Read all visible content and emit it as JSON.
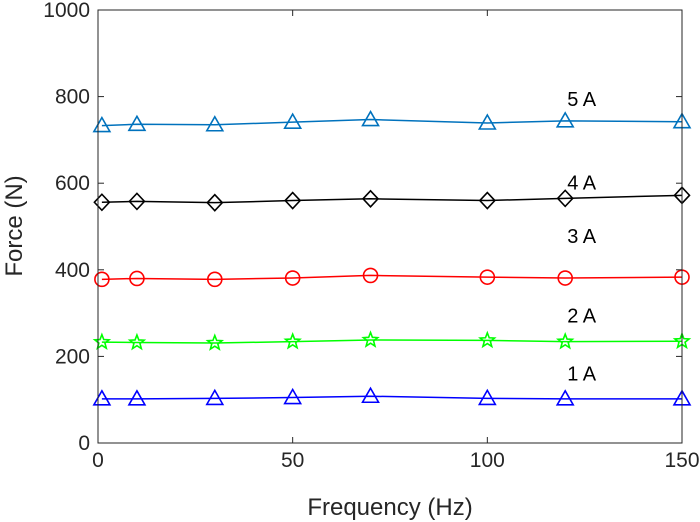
{
  "chart_data": {
    "type": "line",
    "title": "",
    "xlabel": "Frequency (Hz)",
    "ylabel": "Force (N)",
    "xlim": [
      0,
      150
    ],
    "ylim": [
      0,
      1000
    ],
    "xticks": [
      0,
      50,
      100,
      150
    ],
    "yticks": [
      0,
      200,
      400,
      600,
      800,
      1000
    ],
    "grid": false,
    "x": [
      1,
      10,
      30,
      50,
      70,
      100,
      120,
      150
    ],
    "series": [
      {
        "name": "1 A",
        "marker": "triangle",
        "color": "#0000ff",
        "values": [
          102,
          102,
          103,
          105,
          108,
          103,
          102,
          102
        ]
      },
      {
        "name": "2 A",
        "marker": "star",
        "color": "#00ff00",
        "values": [
          233,
          232,
          231,
          234,
          238,
          237,
          234,
          235
        ]
      },
      {
        "name": "3 A",
        "marker": "circle",
        "color": "#ff0000",
        "values": [
          378,
          380,
          378,
          381,
          387,
          383,
          381,
          383
        ]
      },
      {
        "name": "4 A",
        "marker": "diamond",
        "color": "#000000",
        "values": [
          556,
          558,
          555,
          560,
          564,
          560,
          565,
          572
        ]
      },
      {
        "name": "5 A",
        "marker": "triangle",
        "color": "#0072bd",
        "values": [
          733,
          736,
          735,
          741,
          747,
          739,
          744,
          742
        ]
      }
    ],
    "annotations": [
      {
        "text": "1 A",
        "x": 120,
        "y": 160
      },
      {
        "text": "2 A",
        "x": 120,
        "y": 295
      },
      {
        "text": "3 A",
        "x": 120,
        "y": 478
      },
      {
        "text": "4 A",
        "x": 120,
        "y": 602
      },
      {
        "text": "5 A",
        "x": 120,
        "y": 795
      }
    ]
  }
}
